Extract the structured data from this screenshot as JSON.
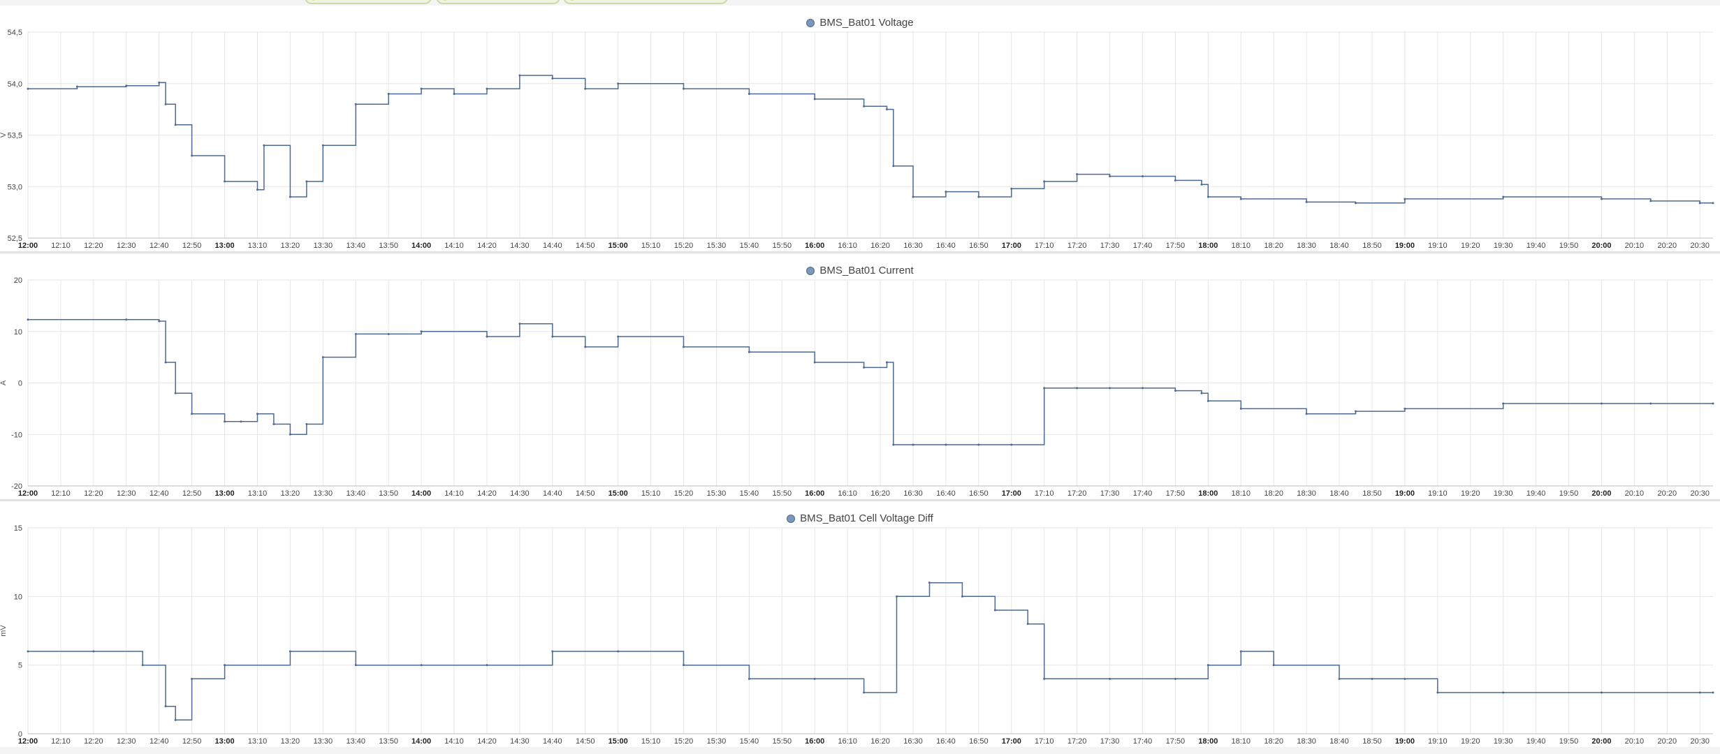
{
  "top_chips": [
    "",
    "",
    ""
  ],
  "colors": {
    "series": "#4d6a92",
    "grid": "#e6e6e6",
    "axis": "#bdbdbd",
    "legend_dot": "#7d97b9"
  },
  "chart_data": [
    {
      "type": "line",
      "title": "BMS_Bat01 Voltage",
      "ylabel": "V",
      "ylim": [
        52.5,
        54.5
      ],
      "yticks": [
        "52,5",
        "53,0",
        "53,5",
        "54,0",
        "54,5"
      ],
      "xlim": [
        "12:00",
        "20:34"
      ],
      "xticks": [
        "12:00",
        "12:10",
        "12:20",
        "12:30",
        "12:40",
        "12:50",
        "13:00",
        "13:10",
        "13:20",
        "13:30",
        "13:40",
        "13:50",
        "14:00",
        "14:10",
        "14:20",
        "14:30",
        "14:40",
        "14:50",
        "15:00",
        "15:10",
        "15:20",
        "15:30",
        "15:40",
        "15:50",
        "16:00",
        "16:10",
        "16:20",
        "16:30",
        "16:40",
        "16:50",
        "17:00",
        "17:10",
        "17:20",
        "17:30",
        "17:40",
        "17:50",
        "18:00",
        "18:10",
        "18:20",
        "18:30",
        "18:40",
        "18:50",
        "19:00",
        "19:10",
        "19:20",
        "19:30",
        "19:40",
        "19:50",
        "20:00",
        "20:10",
        "20:20",
        "20:30"
      ],
      "grid": true,
      "legend": "top-center",
      "series": [
        {
          "name": "BMS_Bat01 Voltage",
          "x": [
            "12:00",
            "12:15",
            "12:30",
            "12:40",
            "12:42",
            "12:45",
            "12:50",
            "13:00",
            "13:10",
            "13:12",
            "13:20",
            "13:25",
            "13:30",
            "13:40",
            "13:50",
            "14:00",
            "14:10",
            "14:20",
            "14:30",
            "14:40",
            "14:50",
            "15:00",
            "15:20",
            "15:40",
            "16:00",
            "16:15",
            "16:22",
            "16:24",
            "16:30",
            "16:40",
            "16:50",
            "17:00",
            "17:10",
            "17:20",
            "17:30",
            "17:40",
            "17:50",
            "17:58",
            "18:00",
            "18:10",
            "18:30",
            "18:45",
            "19:00",
            "19:30",
            "20:00",
            "20:15",
            "20:30",
            "20:34"
          ],
          "y": [
            53.95,
            53.97,
            53.98,
            54.01,
            53.8,
            53.6,
            53.3,
            53.05,
            52.97,
            53.4,
            52.9,
            53.05,
            53.4,
            53.8,
            53.9,
            53.95,
            53.9,
            53.95,
            54.08,
            54.05,
            53.95,
            54.0,
            53.95,
            53.9,
            53.85,
            53.78,
            53.75,
            53.2,
            52.9,
            52.95,
            52.9,
            52.98,
            53.05,
            53.12,
            53.1,
            53.1,
            53.06,
            53.02,
            52.9,
            52.88,
            52.85,
            52.84,
            52.88,
            52.9,
            52.88,
            52.86,
            52.84,
            52.84
          ]
        }
      ]
    },
    {
      "type": "line",
      "title": "BMS_Bat01 Current",
      "ylabel": "A",
      "ylim": [
        -20,
        20
      ],
      "yticks": [
        "-20",
        "-10",
        "0",
        "10",
        "20"
      ],
      "xlim": [
        "12:00",
        "20:34"
      ],
      "xticks": [
        "12:00",
        "12:10",
        "12:20",
        "12:30",
        "12:40",
        "12:50",
        "13:00",
        "13:10",
        "13:20",
        "13:30",
        "13:40",
        "13:50",
        "14:00",
        "14:10",
        "14:20",
        "14:30",
        "14:40",
        "14:50",
        "15:00",
        "15:10",
        "15:20",
        "15:30",
        "15:40",
        "15:50",
        "16:00",
        "16:10",
        "16:20",
        "16:30",
        "16:40",
        "16:50",
        "17:00",
        "17:10",
        "17:20",
        "17:30",
        "17:40",
        "17:50",
        "18:00",
        "18:10",
        "18:20",
        "18:30",
        "18:40",
        "18:50",
        "19:00",
        "19:10",
        "19:20",
        "19:30",
        "19:40",
        "19:50",
        "20:00",
        "20:10",
        "20:20",
        "20:30"
      ],
      "grid": true,
      "legend": "top-center",
      "series": [
        {
          "name": "BMS_Bat01 Current",
          "x": [
            "12:00",
            "12:30",
            "12:40",
            "12:42",
            "12:45",
            "12:50",
            "13:00",
            "13:05",
            "13:10",
            "13:15",
            "13:20",
            "13:25",
            "13:30",
            "13:40",
            "13:50",
            "14:00",
            "14:20",
            "14:30",
            "14:40",
            "14:50",
            "15:00",
            "15:20",
            "15:40",
            "16:00",
            "16:15",
            "16:22",
            "16:24",
            "16:30",
            "16:40",
            "16:50",
            "17:00",
            "17:10",
            "17:20",
            "17:30",
            "17:40",
            "17:50",
            "17:58",
            "18:00",
            "18:10",
            "18:30",
            "18:45",
            "19:00",
            "19:30",
            "20:00",
            "20:15",
            "20:34"
          ],
          "y": [
            12.3,
            12.3,
            12.0,
            4.0,
            -2.0,
            -6.0,
            -7.5,
            -7.5,
            -6.0,
            -8.0,
            -10.0,
            -8.0,
            5.0,
            9.5,
            9.5,
            10.0,
            9.0,
            11.5,
            9.0,
            7.0,
            9.0,
            7.0,
            6.0,
            4.0,
            3.0,
            4.0,
            -12.0,
            -12.0,
            -12.0,
            -12.0,
            -12.0,
            -1.0,
            -1.0,
            -1.0,
            -1.0,
            -1.5,
            -2.0,
            -3.5,
            -5.0,
            -6.0,
            -5.5,
            -5.0,
            -4.0,
            -4.0,
            -4.0,
            -4.0
          ]
        }
      ]
    },
    {
      "type": "line",
      "title": "BMS_Bat01 Cell Voltage Diff",
      "ylabel": "mV",
      "ylim": [
        0,
        15
      ],
      "yticks": [
        "0",
        "5",
        "10",
        "15"
      ],
      "xlim": [
        "12:00",
        "20:34"
      ],
      "xticks": [
        "12:00",
        "12:10",
        "12:20",
        "12:30",
        "12:40",
        "12:50",
        "13:00",
        "13:10",
        "13:20",
        "13:30",
        "13:40",
        "13:50",
        "14:00",
        "14:10",
        "14:20",
        "14:30",
        "14:40",
        "14:50",
        "15:00",
        "15:10",
        "15:20",
        "15:30",
        "15:40",
        "15:50",
        "16:00",
        "16:10",
        "16:20",
        "16:30",
        "16:40",
        "16:50",
        "17:00",
        "17:10",
        "17:20",
        "17:30",
        "17:40",
        "17:50",
        "18:00",
        "18:10",
        "18:20",
        "18:30",
        "18:40",
        "18:50",
        "19:00",
        "19:10",
        "19:20",
        "19:30",
        "19:40",
        "19:50",
        "20:00",
        "20:10",
        "20:20",
        "20:30"
      ],
      "grid": true,
      "legend": "top-center",
      "series": [
        {
          "name": "BMS_Bat01 Cell Voltage Diff",
          "x": [
            "12:00",
            "12:20",
            "12:35",
            "12:42",
            "12:45",
            "12:50",
            "13:00",
            "13:20",
            "13:40",
            "14:00",
            "14:20",
            "14:40",
            "15:00",
            "15:20",
            "15:40",
            "16:00",
            "16:15",
            "16:25",
            "16:35",
            "16:45",
            "16:55",
            "17:05",
            "17:10",
            "17:30",
            "17:50",
            "18:00",
            "18:10",
            "18:20",
            "18:40",
            "18:50",
            "19:00",
            "19:10",
            "19:30",
            "20:00",
            "20:30",
            "20:34"
          ],
          "y": [
            6,
            6,
            5,
            2,
            1,
            4,
            5,
            6,
            5,
            5,
            5,
            6,
            6,
            5,
            4,
            4,
            3,
            10,
            11,
            10,
            9,
            8,
            4,
            4,
            4,
            5,
            6,
            5,
            4,
            4,
            4,
            3,
            3,
            3,
            3,
            3
          ]
        }
      ]
    }
  ]
}
